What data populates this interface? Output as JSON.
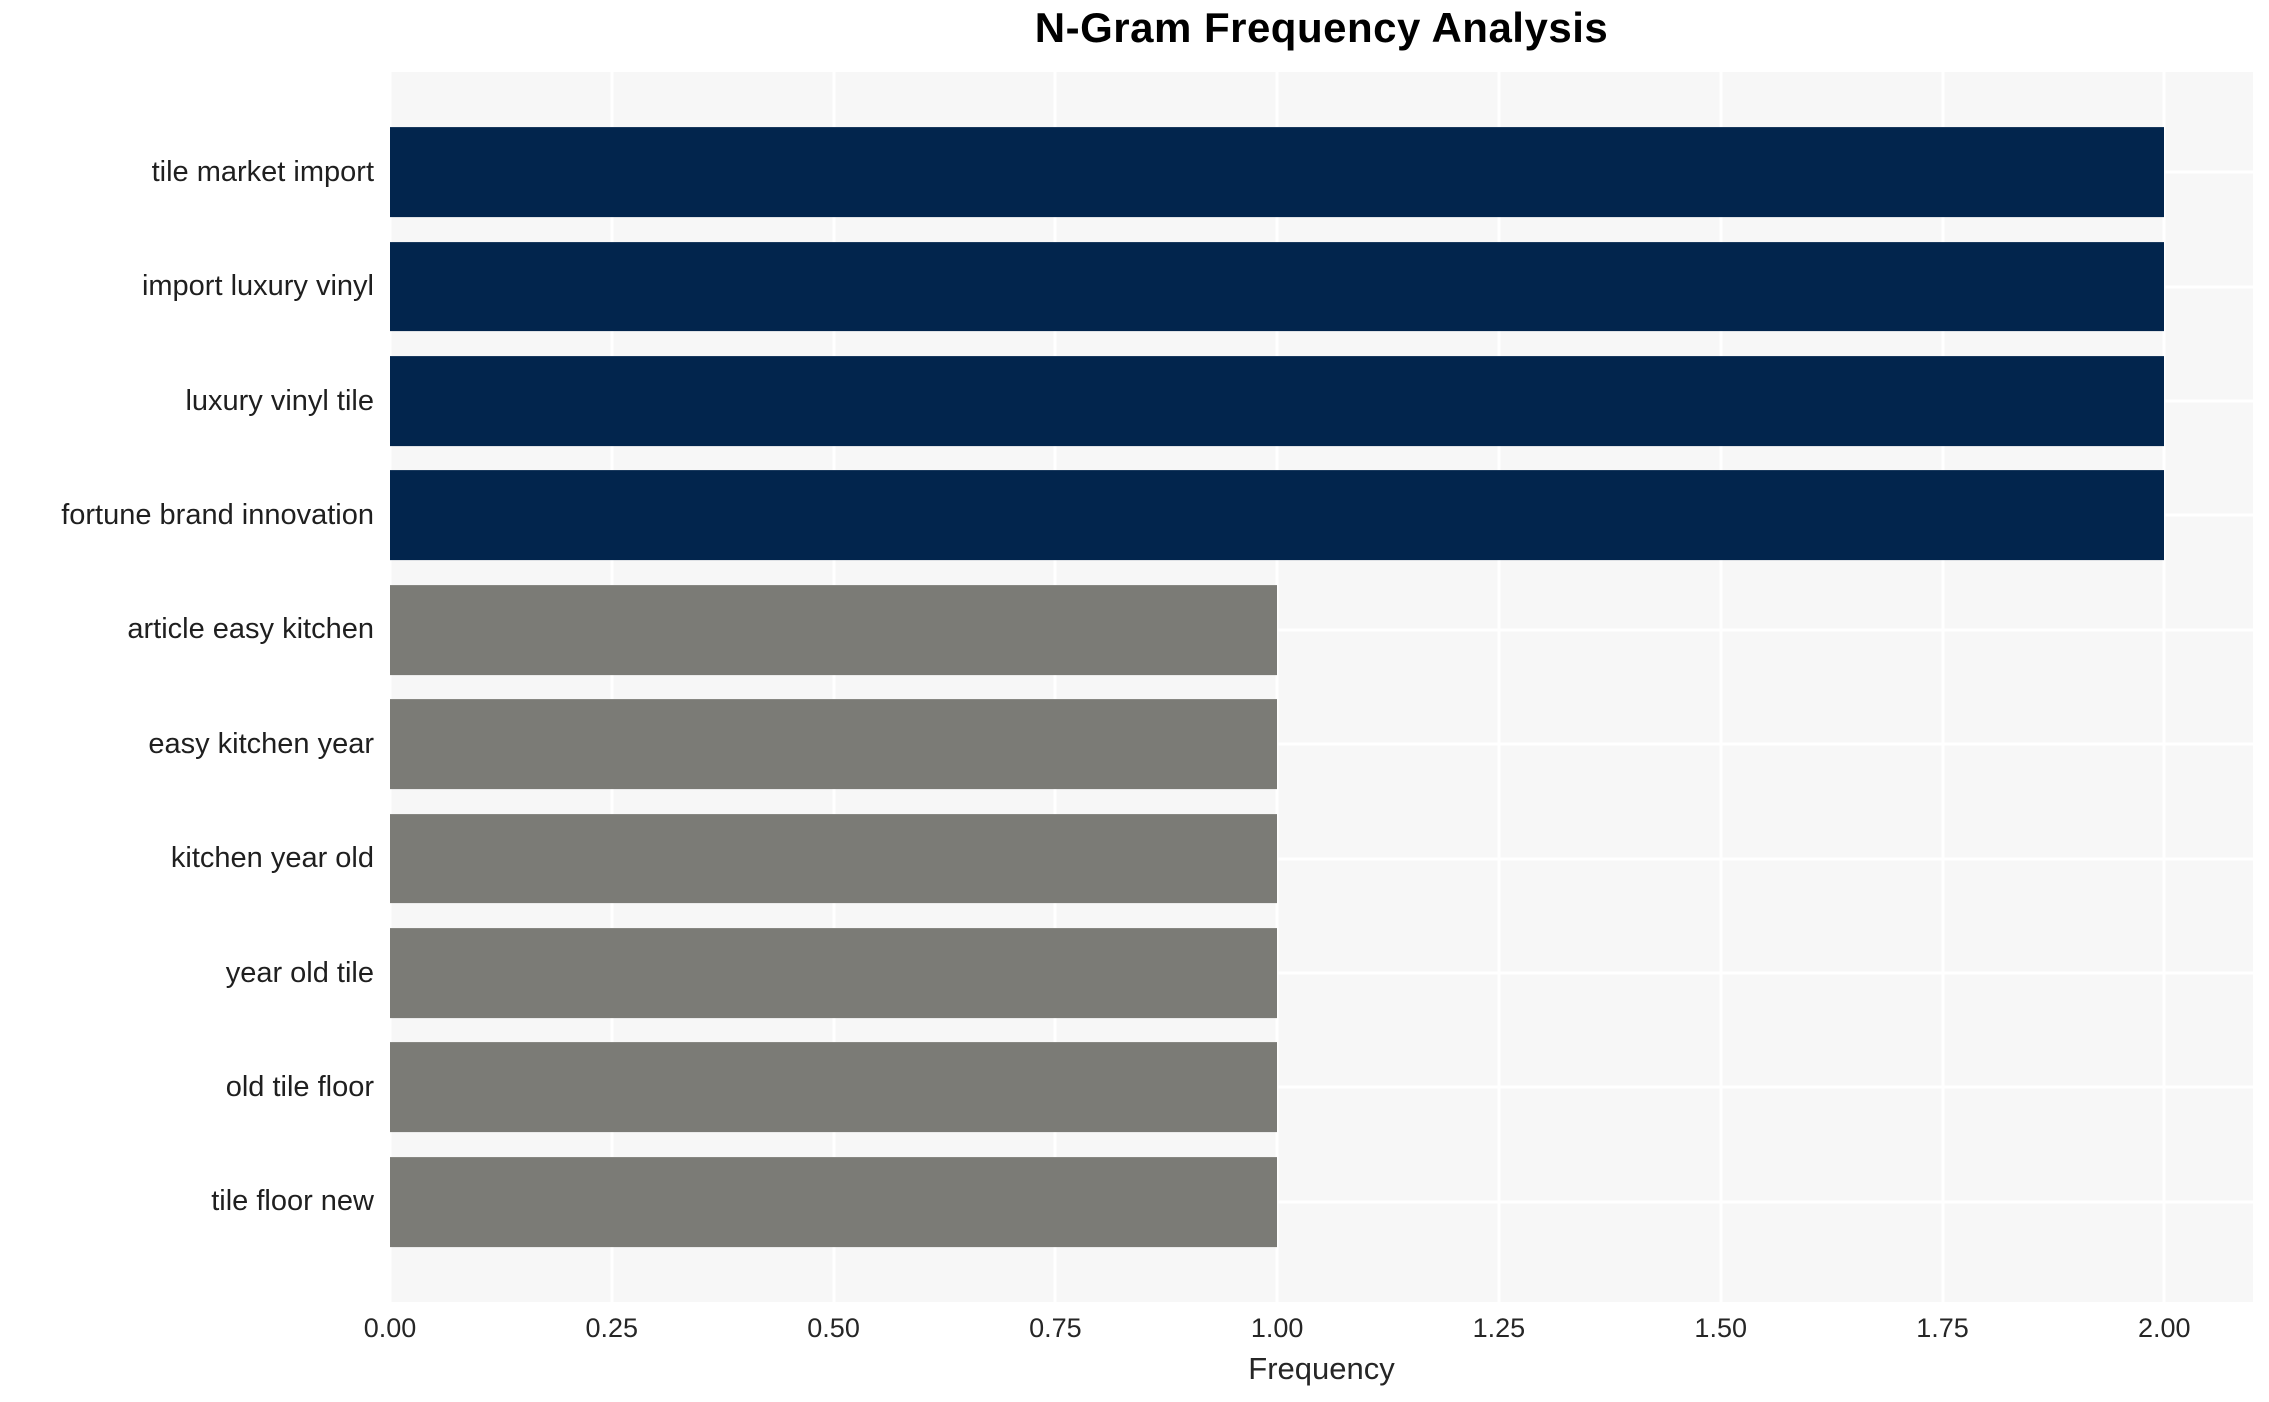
{
  "title": "N-Gram Frequency Analysis",
  "chart_data": {
    "type": "bar",
    "orientation": "horizontal",
    "title": "N-Gram Frequency Analysis",
    "xlabel": "Frequency",
    "ylabel": "",
    "categories": [
      "tile market import",
      "import luxury vinyl",
      "luxury vinyl tile",
      "fortune brand innovation",
      "article easy kitchen",
      "easy kitchen year",
      "kitchen year old",
      "year old tile",
      "old tile floor",
      "tile floor new"
    ],
    "values": [
      2,
      2,
      2,
      2,
      1,
      1,
      1,
      1,
      1,
      1
    ],
    "bar_colors": [
      "#02254d",
      "#02254d",
      "#02254d",
      "#02254d",
      "#7b7b76",
      "#7b7b76",
      "#7b7b76",
      "#7b7b76",
      "#7b7b76",
      "#7b7b76"
    ],
    "xlim": [
      0,
      2.1
    ],
    "xtick_values": [
      0,
      0.25,
      0.5,
      0.75,
      1.0,
      1.25,
      1.5,
      1.75,
      2.0
    ],
    "xtick_labels": [
      "0.00",
      "0.25",
      "0.50",
      "0.75",
      "1.00",
      "1.25",
      "1.50",
      "1.75",
      "2.00"
    ],
    "grid": true,
    "grid_color": "#ffffff",
    "plot_bg": "#f7f7f7",
    "figure_bg": "#ffffff",
    "legend": false
  }
}
